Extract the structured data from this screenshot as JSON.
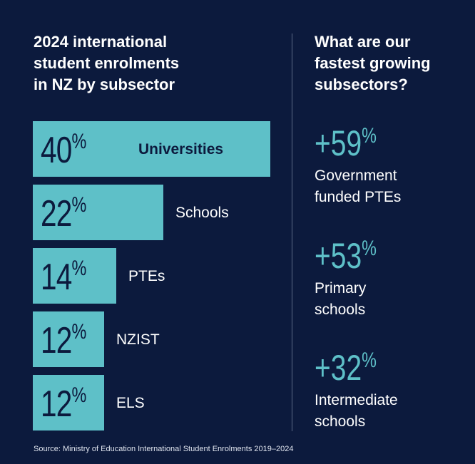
{
  "colors": {
    "background": "#0c1a3d",
    "accent": "#5ec0c8",
    "text": "#ffffff",
    "divider": "#5d6a86"
  },
  "left_title_lines": [
    "2024 international",
    "student enrolments",
    "in NZ by subsector"
  ],
  "right_title_lines": [
    "What are our",
    "fastest growing",
    "subsectors?"
  ],
  "chart_data": {
    "type": "bar",
    "orientation": "horizontal",
    "title": "2024 international student enrolments in NZ by subsector",
    "categories": [
      "Universities",
      "Schools",
      "PTEs",
      "NZIST",
      "ELS"
    ],
    "values": [
      40,
      22,
      14,
      12,
      12
    ],
    "value_labels": [
      "40",
      "22",
      "14",
      "12",
      "12"
    ],
    "unit": "%",
    "xlim": [
      0,
      40
    ],
    "grid": false,
    "legend": "none"
  },
  "growth": {
    "items": [
      {
        "value": "+59",
        "unit": "%",
        "label_lines": [
          "Government",
          "funded PTEs"
        ]
      },
      {
        "value": "+53",
        "unit": "%",
        "label_lines": [
          "Primary",
          "schools"
        ]
      },
      {
        "value": "+32",
        "unit": "%",
        "label_lines": [
          "Intermediate",
          "schools"
        ]
      }
    ]
  },
  "source": "Source: Ministry of Education International Student Enrolments 2019–2024"
}
